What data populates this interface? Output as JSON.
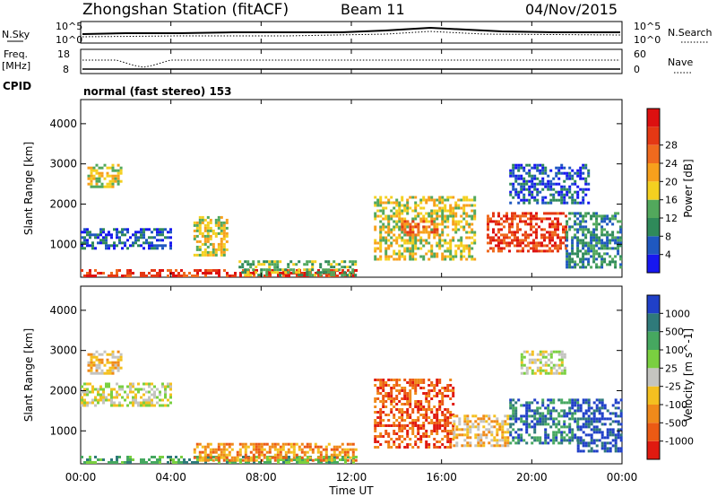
{
  "header": {
    "title": "Zhongshan Station (fitACF)",
    "beam": "Beam 11",
    "date": "04/Nov/2015"
  },
  "strip1": {
    "left_label": "N.Sky",
    "left_ticks": [
      "10^5",
      "10^0"
    ],
    "right_label": "N.Search",
    "right_ticks": [
      "10^5",
      "10^0"
    ]
  },
  "strip2": {
    "left_label": "Freq.",
    "left_unit": "[MHz]",
    "left_ticks": [
      "18",
      "8"
    ],
    "right_label": "Nave",
    "right_ticks": [
      "60",
      "0"
    ]
  },
  "cpid": {
    "label": "CPID",
    "text": "normal (fast stereo) 153"
  },
  "x_ticks": [
    "00:00",
    "04:00",
    "08:00",
    "12:00",
    "16:00",
    "20:00",
    "00:00"
  ],
  "x_label": "Time UT",
  "y_label": "Slant Range [km]",
  "y_ticks": [
    "1000",
    "2000",
    "3000",
    "4000"
  ],
  "power_scale": {
    "label": "Power [dB]",
    "ticks": [
      "4",
      "8",
      "12",
      "16",
      "20",
      "24",
      "28"
    ],
    "colors": [
      "#1717f0",
      "#1f58c0",
      "#2f8a5a",
      "#52a85c",
      "#f4d020",
      "#f7a01c",
      "#ef6a1e",
      "#e43814",
      "#dd1010"
    ]
  },
  "velocity_scale": {
    "label": "Velocity [m s^-1]",
    "ticks": [
      "1000",
      "500",
      "100",
      "25",
      "-25",
      "-100",
      "-500",
      "-1000"
    ],
    "colors": [
      "#2040c8",
      "#2f7a7a",
      "#46a860",
      "#7ad040",
      "#c4c4c0",
      "#f4c020",
      "#f08a1a",
      "#ec5a14",
      "#e01a10"
    ]
  },
  "chart_data": [
    {
      "type": "heatmap",
      "title": "Power",
      "xlabel": "Time UT",
      "ylabel": "Slant Range [km]",
      "xlim": [
        "00:00",
        "24:00"
      ],
      "ylim": [
        180,
        4600
      ],
      "colorbar": "Power [dB]",
      "regions": [
        {
          "t0": 0.0,
          "t1": 12.2,
          "r0": 200,
          "r1": 380,
          "level": 7
        },
        {
          "t0": 0.3,
          "t1": 1.8,
          "r0": 2400,
          "r1": 3000,
          "level": 4
        },
        {
          "t0": 0.0,
          "t1": 4.0,
          "r0": 900,
          "r1": 1400,
          "level": 1
        },
        {
          "t0": 5.0,
          "t1": 6.5,
          "r0": 700,
          "r1": 1700,
          "level": 4
        },
        {
          "t0": 7.0,
          "t1": 12.2,
          "r0": 250,
          "r1": 600,
          "level": 3
        },
        {
          "t0": 13.0,
          "t1": 17.5,
          "r0": 600,
          "r1": 2200,
          "level": 4
        },
        {
          "t0": 14.2,
          "t1": 15.8,
          "r0": 1200,
          "r1": 1600,
          "level": 6
        },
        {
          "t0": 18.0,
          "t1": 21.5,
          "r0": 800,
          "r1": 1800,
          "level": 7
        },
        {
          "t0": 19.0,
          "t1": 22.5,
          "r0": 2000,
          "r1": 3000,
          "level": 1
        },
        {
          "t0": 21.5,
          "t1": 24.0,
          "r0": 400,
          "r1": 1800,
          "level": 2
        }
      ]
    },
    {
      "type": "heatmap",
      "title": "Velocity",
      "xlabel": "Time UT",
      "ylabel": "Slant Range [km]",
      "xlim": [
        "00:00",
        "24:00"
      ],
      "ylim": [
        180,
        4600
      ],
      "colorbar": "Velocity [m s^-1]",
      "regions": [
        {
          "t0": 0.0,
          "t1": 12.2,
          "r0": 200,
          "r1": 380,
          "level": 2
        },
        {
          "t0": 0.3,
          "t1": 1.8,
          "r0": 2400,
          "r1": 3000,
          "level": 5
        },
        {
          "t0": 0.0,
          "t1": 4.0,
          "r0": 1600,
          "r1": 2200,
          "level": 4
        },
        {
          "t0": 5.0,
          "t1": 12.2,
          "r0": 250,
          "r1": 700,
          "level": 6
        },
        {
          "t0": 13.0,
          "t1": 16.5,
          "r0": 600,
          "r1": 2300,
          "level": 7
        },
        {
          "t0": 16.5,
          "t1": 19.0,
          "r0": 600,
          "r1": 1400,
          "level": 5
        },
        {
          "t0": 19.0,
          "t1": 22.0,
          "r0": 700,
          "r1": 1800,
          "level": 1
        },
        {
          "t0": 19.5,
          "t1": 21.5,
          "r0": 2400,
          "r1": 3000,
          "level": 4
        },
        {
          "t0": 22.0,
          "t1": 24.0,
          "r0": 500,
          "r1": 1800,
          "level": 0
        }
      ]
    }
  ]
}
